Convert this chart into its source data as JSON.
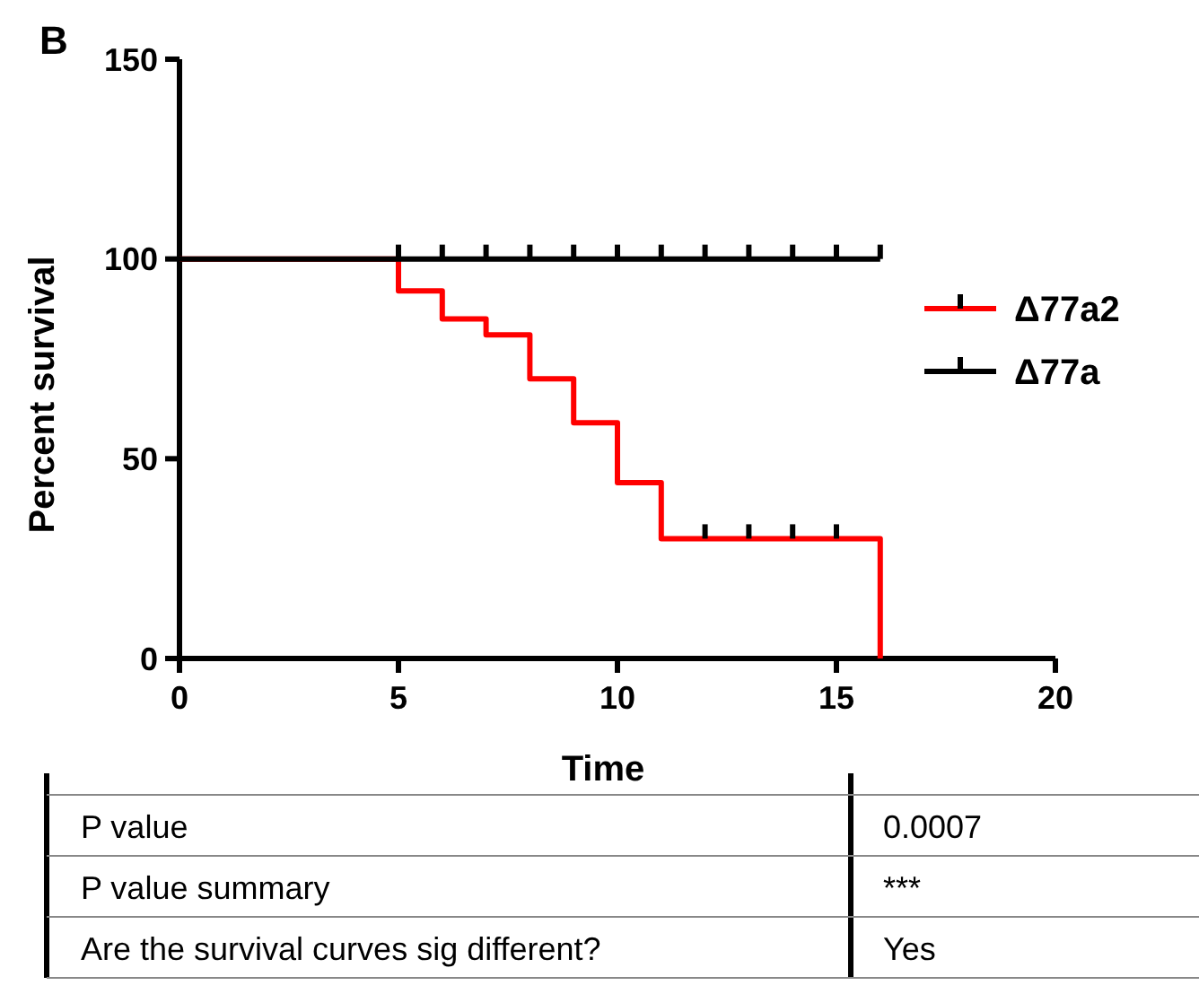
{
  "chart_data": {
    "type": "step",
    "title": "B",
    "xlabel": "Time",
    "ylabel": "Percent survival",
    "xlim": [
      0,
      20
    ],
    "xticks": [
      0,
      5,
      10,
      15,
      20
    ],
    "ylim": [
      0,
      150
    ],
    "yticks": [
      0,
      50,
      100,
      150
    ],
    "grid": false,
    "legend": "right",
    "series": [
      {
        "name": "Δ77a2",
        "color": "#ff0000",
        "x": [
          0,
          5,
          6,
          7,
          8,
          9,
          10,
          11,
          12,
          13,
          14,
          15,
          16
        ],
        "values": [
          100,
          92,
          85,
          81,
          70,
          59,
          44,
          30,
          30,
          30,
          30,
          30,
          0
        ]
      },
      {
        "name": "Δ77a",
        "color": "#000000",
        "x": [
          0,
          5,
          6,
          7,
          8,
          9,
          10,
          11,
          12,
          13,
          14,
          15,
          16
        ],
        "values": [
          100,
          100,
          100,
          100,
          100,
          100,
          100,
          100,
          100,
          100,
          100,
          100,
          100
        ]
      }
    ],
    "annotations": [
      "P value",
      "0.0007",
      "P value summary",
      "***",
      "Are the survival curves sig different?",
      "Yes"
    ]
  }
}
